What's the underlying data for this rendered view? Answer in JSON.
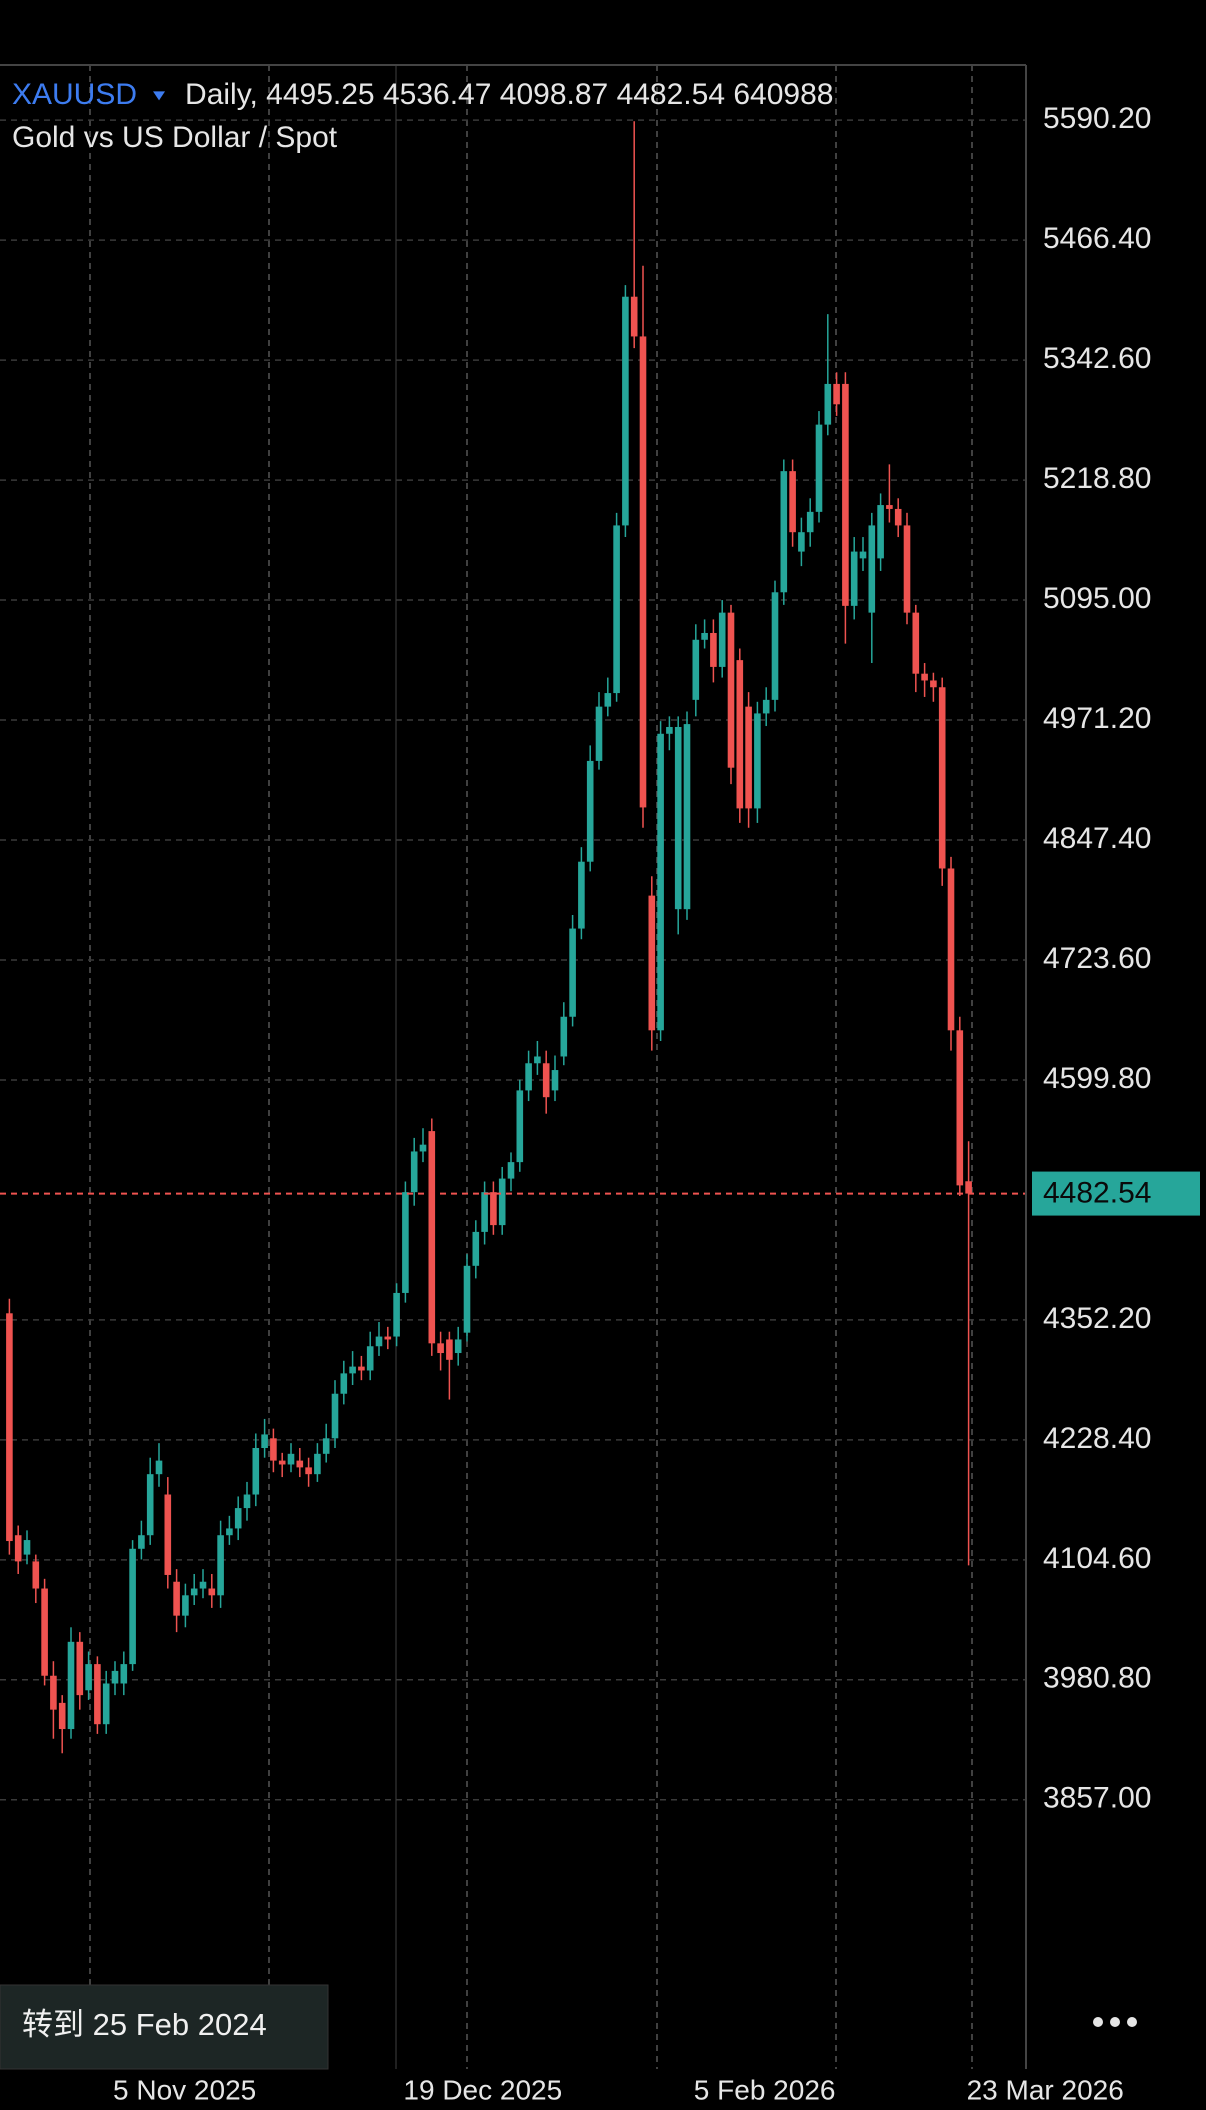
{
  "chart_data": {
    "type": "candlestick",
    "title": "XAUUSD",
    "interval": "Daily,",
    "subtitle": "Gold vs US Dollar / Spot",
    "volume": 640988,
    "up_color": "#26a69a",
    "down_color": "#ef5350",
    "categories": [
      null,
      null,
      null,
      null,
      null,
      null,
      null,
      null,
      null,
      null,
      null,
      null,
      "5 Nov 2025",
      null,
      null,
      null,
      null,
      null,
      null,
      null,
      null,
      null,
      null,
      null,
      null,
      null,
      null,
      null,
      null,
      null,
      null,
      null,
      null,
      null,
      null,
      null,
      null,
      null,
      null,
      null,
      null,
      null,
      null,
      null,
      null,
      "19 Dec 2025",
      null,
      null,
      null,
      null,
      null,
      null,
      null,
      null,
      null,
      null,
      null,
      null,
      null,
      null,
      null,
      null,
      null,
      null,
      null,
      null,
      null,
      null,
      null,
      null,
      null,
      null,
      null,
      null,
      null,
      null,
      null,
      null,
      "5 Feb 2026",
      null,
      null,
      null,
      null,
      null,
      null,
      null,
      null,
      null,
      null,
      null,
      null,
      null,
      null,
      null,
      null,
      null,
      null,
      null,
      null,
      null,
      null,
      null,
      null,
      null,
      null,
      null,
      null,
      null,
      null,
      "23 Mar 2026"
    ],
    "open": [
      4359,
      4130,
      4110,
      4103,
      4075,
      3985,
      3957,
      3930,
      4020,
      3970,
      3997,
      3935,
      3977,
      3977,
      3997,
      4116,
      4130,
      4193,
      4172,
      4082,
      4047,
      4068,
      4075,
      4075,
      4068,
      4130,
      4137,
      4158,
      4172,
      4220,
      4230,
      4207,
      4203,
      4207,
      4200,
      4193,
      4214,
      4230,
      4276,
      4297,
      4304,
      4300,
      4325,
      4335,
      4335,
      4380,
      4484,
      4526,
      4547,
      4328,
      4332,
      4318,
      4339,
      4408,
      4443,
      4484,
      4450,
      4498,
      4515,
      4589,
      4617,
      4617,
      4589,
      4624,
      4665,
      4756,
      4825,
      4929,
      4985,
      4999,
      5172,
      5408,
      5367,
      4790,
      4651,
      4957,
      4776,
      4776,
      4992,
      5054,
      5061,
      5026,
      5082,
      5033,
      4985,
      4880,
      4978,
      4992,
      5103,
      5228,
      5145,
      5165,
      5186,
      5276,
      5318,
      5318,
      5089,
      5138,
      5082,
      5138,
      5193,
      5189,
      5172,
      5082,
      5019,
      5012,
      5005,
      4818,
      4651,
      4495.25
    ],
    "high": [
      4374,
      4140,
      4135,
      4110,
      4085,
      4000,
      3965,
      4035,
      4030,
      4010,
      4005,
      3990,
      4000,
      4010,
      4125,
      4145,
      4210,
      4225,
      4190,
      4095,
      4080,
      4090,
      4095,
      4090,
      4145,
      4150,
      4170,
      4185,
      4235,
      4250,
      4240,
      4215,
      4225,
      4220,
      4210,
      4225,
      4245,
      4290,
      4310,
      4320,
      4315,
      4340,
      4350,
      4345,
      4390,
      4495,
      4540,
      4550,
      4560,
      4340,
      4340,
      4345,
      4420,
      4455,
      4495,
      4495,
      4510,
      4525,
      4600,
      4630,
      4640,
      4630,
      4625,
      4680,
      4770,
      4840,
      4945,
      5000,
      5015,
      5185,
      5420,
      5589,
      5440,
      4810,
      4970,
      4975,
      4975,
      4980,
      5070,
      5075,
      5075,
      5095,
      5090,
      5045,
      5000,
      4990,
      5005,
      5115,
      5240,
      5240,
      5180,
      5200,
      5290,
      5390,
      5330,
      5330,
      5160,
      5160,
      5185,
      5205,
      5235,
      5200,
      5185,
      5090,
      5030,
      5020,
      5015,
      4830,
      4665,
      4536.47
    ],
    "low": [
      4110,
      4090,
      4100,
      4060,
      3975,
      3920,
      3905,
      3920,
      3950,
      3960,
      3925,
      3925,
      3965,
      3965,
      3990,
      4105,
      4120,
      4180,
      4075,
      4030,
      4035,
      4058,
      4065,
      4055,
      4055,
      4120,
      4125,
      4145,
      4160,
      4210,
      4195,
      4190,
      4195,
      4190,
      4180,
      4185,
      4205,
      4220,
      4265,
      4285,
      4290,
      4290,
      4315,
      4322,
      4325,
      4370,
      4470,
      4515,
      4315,
      4300,
      4270,
      4305,
      4330,
      4395,
      4430,
      4440,
      4440,
      4485,
      4505,
      4578,
      4605,
      4565,
      4578,
      4615,
      4655,
      4745,
      4815,
      4920,
      4975,
      4990,
      5160,
      5355,
      4860,
      4630,
      4640,
      4940,
      4750,
      4765,
      4975,
      5045,
      5010,
      5015,
      4905,
      4865,
      4860,
      4865,
      4965,
      4980,
      5090,
      5150,
      5130,
      5150,
      5175,
      5265,
      5285,
      5050,
      5075,
      5125,
      5030,
      5125,
      5175,
      5160,
      5070,
      5000,
      4995,
      4990,
      4800,
      4630,
      4480,
      4098.87
    ],
    "close": [
      4124,
      4103,
      4125,
      4075,
      3985,
      3950,
      3930,
      4020,
      3965,
      3997,
      3935,
      3977,
      3990,
      3997,
      4116,
      4130,
      4193,
      4207,
      4089,
      4047,
      4068,
      4075,
      4082,
      4068,
      4130,
      4137,
      4158,
      4172,
      4220,
      4234,
      4207,
      4203,
      4214,
      4200,
      4193,
      4214,
      4230,
      4276,
      4297,
      4304,
      4300,
      4325,
      4335,
      4332,
      4380,
      4484,
      4526,
      4533,
      4328,
      4318,
      4311,
      4332,
      4408,
      4443,
      4484,
      4450,
      4498,
      4515,
      4589,
      4617,
      4624,
      4582,
      4610,
      4665,
      4756,
      4825,
      4929,
      4985,
      4999,
      5172,
      5408,
      5367,
      4881,
      4651,
      4957,
      4964,
      4964,
      4967,
      5054,
      5061,
      5026,
      5082,
      4922,
      4880,
      4880,
      4978,
      4992,
      5103,
      5228,
      5165,
      5165,
      5186,
      5276,
      5318,
      5297,
      5089,
      5145,
      5145,
      5172,
      5193,
      5189,
      5172,
      5082,
      5019,
      5012,
      5005,
      4818,
      4651,
      4491,
      4482.54
    ],
    "ylim": [
      3579.2,
      5647.1
    ],
    "yticks": [
      {
        "value": 5590.2,
        "label": "5590.20"
      },
      {
        "value": 5466.4,
        "label": "5466.40"
      },
      {
        "value": 5342.6,
        "label": "5342.60"
      },
      {
        "value": 5218.8,
        "label": "5218.80"
      },
      {
        "value": 5095,
        "label": "5095.00"
      },
      {
        "value": 4971.2,
        "label": "4971.20"
      },
      {
        "value": 4847.4,
        "label": "4847.40"
      },
      {
        "value": 4723.6,
        "label": "4723.60"
      },
      {
        "value": 4599.8,
        "label": "4599.80"
      },
      {
        "value": 4352.2,
        "label": "4352.20"
      },
      {
        "value": 4228.4,
        "label": "4228.40"
      },
      {
        "value": 4104.6,
        "label": "4104.60"
      },
      {
        "value": 3980.8,
        "label": "3980.80"
      },
      {
        "value": 3857,
        "label": "3857.00"
      }
    ],
    "grid": true
  },
  "goto_button": "转到 25 Feb 2024"
}
